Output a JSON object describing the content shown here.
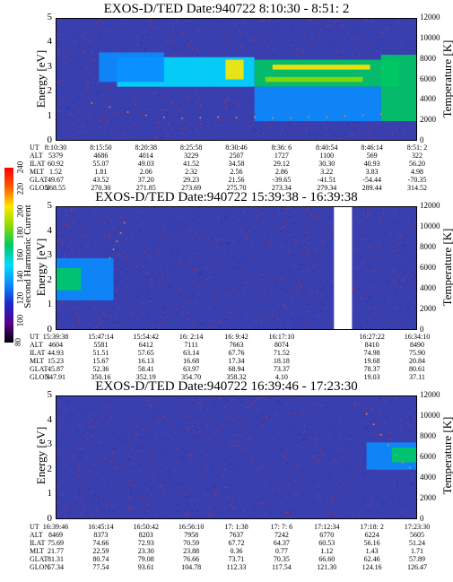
{
  "colors": {
    "background": "#ffffff",
    "noise_floor": "#3a3fb0",
    "noise_speckle": "#9a3a5a",
    "temperature_trace": "#ff8a2a"
  },
  "colorbar": {
    "label": "Second Harmonic Current",
    "ticks": [
      "80",
      "100",
      "120",
      "140",
      "160",
      "180",
      "200",
      "220",
      "240"
    ],
    "stops": [
      "#000000",
      "#5a008c",
      "#1e28c8",
      "#0a8cff",
      "#00dcff",
      "#00c864",
      "#8cdc00",
      "#ffe600",
      "#ff5a00",
      "#ff0000"
    ]
  },
  "panels": [
    {
      "title": "EXOS-D/TED   Date:940722  8:10:30 - 8:51: 2",
      "ylabel_left": "Energy [eV]",
      "ylabel_right": "Temperature [K]",
      "left_ticks": [
        "0",
        "1",
        "2",
        "3",
        "4",
        "5"
      ],
      "right_ticks": [
        "0",
        "2000",
        "4000",
        "6000",
        "8000",
        "10000",
        "12000"
      ],
      "ephemeris_labels": [
        "UT",
        "ALT",
        "ILAT",
        "MLT",
        "GLAT",
        "GLON"
      ],
      "ephemeris_columns": [
        [
          "8:10:30",
          "5379",
          "60.92",
          "1.52",
          "49.67",
          "268.55"
        ],
        [
          "8:15:50",
          "4686",
          "55.07",
          "1.81",
          "43.52",
          "270.30"
        ],
        [
          "8:20:38",
          "4014",
          "49.03",
          "2.06",
          "37.20",
          "271.85"
        ],
        [
          "8:25:58",
          "3229",
          "41.52",
          "2.32",
          "29.23",
          "273.69"
        ],
        [
          "8:30:46",
          "2507",
          "34.58",
          "2.56",
          "21.56",
          "275.70"
        ],
        [
          "8:36: 6",
          "1727",
          "29.12",
          "2.86",
          "-39.65",
          "273.34"
        ],
        [
          "8:40:54",
          "1100",
          "30.30",
          "3.22",
          "-41.51",
          "279.34"
        ],
        [
          "8:46:14",
          "569",
          "40.93",
          "3.83",
          "-54.44",
          "289.44"
        ],
        [
          "8:51: 2",
          "322",
          "56.20",
          "4.98",
          "-70.35",
          "314.52"
        ]
      ]
    },
    {
      "title": "EXOS-D/TED   Date:940722  15:39:38 - 16:39:38",
      "ylabel_left": "Energy [eV]",
      "ylabel_right": "Temperature [K]",
      "left_ticks": [
        "0",
        "1",
        "2",
        "3",
        "4",
        "5"
      ],
      "right_ticks": [
        "0",
        "2000",
        "4000",
        "6000",
        "8000",
        "10000",
        "12000"
      ],
      "ephemeris_labels": [
        "UT",
        "ALT",
        "ILAT",
        "MLT",
        "GLAT",
        "GLON"
      ],
      "ephemeris_columns": [
        [
          "15:39:38",
          "4604",
          "44.93",
          "15.23",
          "45.87",
          "347.91"
        ],
        [
          "15:47:14",
          "5581",
          "51.51",
          "15.67",
          "52.36",
          "350.16"
        ],
        [
          "15:54:42",
          "6412",
          "57.65",
          "16.13",
          "58.41",
          "352.19"
        ],
        [
          "16: 2:14",
          "7111",
          "63.14",
          "16.68",
          "63.97",
          "354.70"
        ],
        [
          "16: 9:42",
          "7663",
          "67.76",
          "17.34",
          "68.94",
          "358.32"
        ],
        [
          "16:17:10",
          "8074",
          "71.52",
          "18.18",
          "73.37",
          "4.10"
        ],
        [
          "",
          "",
          "",
          "",
          "",
          ""
        ],
        [
          "16:27:22",
          "8410",
          "74.98",
          "19.68",
          "78.37",
          "19.03"
        ],
        [
          "16:34:10",
          "8490",
          "75.90",
          "20.84",
          "80.61",
          "37.11"
        ]
      ]
    },
    {
      "title": "EXOS-D/TED   Date:940722  16:39:46 - 17:23:30",
      "ylabel_left": "Energy [eV]",
      "ylabel_right": "Temperature [K]",
      "left_ticks": [
        "0",
        "1",
        "2",
        "3",
        "4",
        "5"
      ],
      "right_ticks": [
        "0",
        "2000",
        "4000",
        "6000",
        "8000",
        "10000",
        "12000"
      ],
      "ephemeris_labels": [
        "UT",
        "ALT",
        "ILAT",
        "MLT",
        "GLAT",
        "GLON"
      ],
      "ephemeris_columns": [
        [
          "16:39:46",
          "8469",
          "75.69",
          "21.77",
          "81.31",
          "57.34"
        ],
        [
          "16:45:14",
          "8373",
          "74.66",
          "22.59",
          "80.74",
          "77.54"
        ],
        [
          "16:50:42",
          "8203",
          "72.93",
          "23.30",
          "79.08",
          "93.61"
        ],
        [
          "16:56:10",
          "7958",
          "70.59",
          "23.88",
          "76.66",
          "104.78"
        ],
        [
          "17: 1:38",
          "7637",
          "67.72",
          "0.36",
          "73.71",
          "112.33"
        ],
        [
          "17: 7: 6",
          "7242",
          "64.37",
          "0.77",
          "70.35",
          "117.54"
        ],
        [
          "17:12:34",
          "6770",
          "60.53",
          "1.12",
          "66.60",
          "121.30"
        ],
        [
          "17:18: 2",
          "6224",
          "56.16",
          "1.43",
          "62.46",
          "124.16"
        ],
        [
          "17:23:30",
          "5605",
          "51.24",
          "1.71",
          "57.89",
          "126.47"
        ]
      ]
    }
  ],
  "chart_data": [
    {
      "type": "heatmap",
      "title": "EXOS-D/TED   Date:940722  8:10:30 - 8:51: 2",
      "ylabel": "Energy [eV]",
      "y2label": "Temperature [K]",
      "ylim": [
        0,
        5
      ],
      "y2lim": [
        0,
        12000
      ],
      "x_ticks": [
        "8:10:30",
        "8:15:50",
        "8:20:38",
        "8:25:58",
        "8:30:46",
        "8:36: 6",
        "8:40:54",
        "8:46:14",
        "8:51: 2"
      ],
      "bands": [
        {
          "x0": 0.17,
          "x1": 0.55,
          "e0": 2.2,
          "e1": 3.4,
          "level": 150
        },
        {
          "x0": 0.55,
          "x1": 0.95,
          "e0": 2.2,
          "e1": 3.3,
          "level": 160
        },
        {
          "x0": 0.47,
          "x1": 0.52,
          "e0": 2.5,
          "e1": 3.3,
          "level": 200
        },
        {
          "x0": 0.6,
          "x1": 0.87,
          "e0": 2.9,
          "e1": 3.1,
          "level": 200
        },
        {
          "x0": 0.58,
          "x1": 0.85,
          "e0": 2.4,
          "e1": 2.6,
          "level": 190
        },
        {
          "x0": 0.9,
          "x1": 1.0,
          "e0": 0.8,
          "e1": 3.5,
          "level": 160
        },
        {
          "x0": 0.12,
          "x1": 0.3,
          "e0": 2.4,
          "e1": 3.6,
          "level": 140
        },
        {
          "x0": 0.55,
          "x1": 0.9,
          "e0": 0.8,
          "e1": 2.2,
          "level": 140
        }
      ],
      "temperature_trace": {
        "x": [
          0.1,
          0.15,
          0.2,
          0.25,
          0.3,
          0.35,
          0.4,
          0.45,
          0.5,
          0.55,
          0.6,
          0.65,
          0.7,
          0.75,
          0.8,
          0.85,
          0.9
        ],
        "T": [
          3700,
          3300,
          2800,
          2500,
          2300,
          2200,
          2250,
          2300,
          2250,
          2300,
          2200,
          2200,
          2300,
          2300,
          2400,
          2500,
          2600
        ]
      }
    },
    {
      "type": "heatmap",
      "title": "EXOS-D/TED   Date:940722  15:39:38 - 16:39:38",
      "ylabel": "Energy [eV]",
      "y2label": "Temperature [K]",
      "ylim": [
        0,
        5
      ],
      "y2lim": [
        0,
        12000
      ],
      "x_ticks": [
        "15:39:38",
        "15:47:14",
        "15:54:42",
        "16: 2:14",
        "16: 9:42",
        "16:17:10",
        "16:27:22",
        "16:34:10"
      ],
      "data_gap": [
        0.77,
        0.82
      ],
      "bands": [
        {
          "x0": 0.0,
          "x1": 0.16,
          "e0": 1.2,
          "e1": 2.9,
          "level": 140
        },
        {
          "x0": 0.0,
          "x1": 0.07,
          "e0": 1.6,
          "e1": 2.5,
          "level": 165
        }
      ],
      "temperature_trace": {
        "x": [
          0.15,
          0.16,
          0.17,
          0.18,
          0.19
        ],
        "T": [
          7000,
          7800,
          8600,
          9400,
          10400
        ]
      }
    },
    {
      "type": "heatmap",
      "title": "EXOS-D/TED   Date:940722  16:39:46 - 17:23:30",
      "ylabel": "Energy [eV]",
      "y2label": "Temperature [K]",
      "ylim": [
        0,
        5
      ],
      "y2lim": [
        0,
        12000
      ],
      "x_ticks": [
        "16:39:46",
        "16:45:14",
        "16:50:42",
        "16:56:10",
        "17: 1:38",
        "17: 7: 6",
        "17:12:34",
        "17:18: 2",
        "17:23:30"
      ],
      "bands": [
        {
          "x0": 0.86,
          "x1": 1.0,
          "e0": 2.0,
          "e1": 3.1,
          "level": 140
        },
        {
          "x0": 0.93,
          "x1": 1.0,
          "e0": 2.3,
          "e1": 2.9,
          "level": 160
        }
      ],
      "temperature_trace": {
        "x": [
          0.86,
          0.88,
          0.9,
          0.92,
          0.94,
          0.96,
          0.98
        ],
        "T": [
          10200,
          9200,
          8200,
          7200,
          6200,
          5500,
          5000
        ]
      }
    }
  ]
}
